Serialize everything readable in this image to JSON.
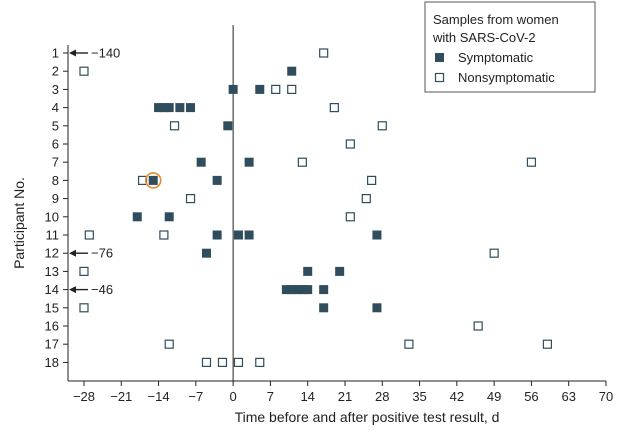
{
  "colors": {
    "symptomatic": "#2f4d5c",
    "nonsymptomatic_stroke": "#2f4d5c",
    "nonsymptomatic_fill": "#ffffff",
    "highlight_ring": "#e8892b",
    "axis": "#222222",
    "zero_line": "#222222",
    "legend_border": "#555555"
  },
  "chart_data": {
    "type": "scatter",
    "xlabel": "Time before and after positive test result, d",
    "ylabel": "Participant No.",
    "xlim": [
      -31,
      70
    ],
    "x_ticks": [
      -28,
      -21,
      -14,
      -7,
      0,
      7,
      14,
      21,
      28,
      35,
      42,
      49,
      56,
      63,
      70
    ],
    "y_categories": [
      "1",
      "2",
      "3",
      "4",
      "5",
      "6",
      "7",
      "8",
      "9",
      "10",
      "11",
      "12",
      "13",
      "14",
      "15",
      "16",
      "17",
      "18"
    ],
    "legend_title_lines": [
      "Samples from women",
      "with SARS-CoV-2"
    ],
    "legend_position": "top-right",
    "series": [
      {
        "name": "Symptomatic",
        "marker": "filled-square",
        "points": [
          {
            "p": 2,
            "x": 11
          },
          {
            "p": 3,
            "x": 0
          },
          {
            "p": 3,
            "x": 5
          },
          {
            "p": 4,
            "x": -14
          },
          {
            "p": 4,
            "x": -13
          },
          {
            "p": 4,
            "x": -12
          },
          {
            "p": 4,
            "x": -10
          },
          {
            "p": 4,
            "x": -8
          },
          {
            "p": 5,
            "x": -1
          },
          {
            "p": 7,
            "x": -6
          },
          {
            "p": 7,
            "x": 3
          },
          {
            "p": 8,
            "x": -15
          },
          {
            "p": 8,
            "x": -3
          },
          {
            "p": 10,
            "x": -18
          },
          {
            "p": 10,
            "x": -12
          },
          {
            "p": 11,
            "x": -3
          },
          {
            "p": 11,
            "x": 1
          },
          {
            "p": 11,
            "x": 3
          },
          {
            "p": 11,
            "x": 27
          },
          {
            "p": 12,
            "x": -5
          },
          {
            "p": 13,
            "x": 14
          },
          {
            "p": 13,
            "x": 20
          },
          {
            "p": 14,
            "x": 10
          },
          {
            "p": 14,
            "x": 11
          },
          {
            "p": 14,
            "x": 12
          },
          {
            "p": 14,
            "x": 13
          },
          {
            "p": 14,
            "x": 14
          },
          {
            "p": 14,
            "x": 17
          },
          {
            "p": 15,
            "x": 17
          },
          {
            "p": 15,
            "x": 27
          }
        ]
      },
      {
        "name": "Nonsymptomatic",
        "marker": "open-square",
        "points": [
          {
            "p": 1,
            "x": 17
          },
          {
            "p": 2,
            "x": -28
          },
          {
            "p": 3,
            "x": 8
          },
          {
            "p": 3,
            "x": 11
          },
          {
            "p": 4,
            "x": 19
          },
          {
            "p": 5,
            "x": -11
          },
          {
            "p": 5,
            "x": 28
          },
          {
            "p": 6,
            "x": 22
          },
          {
            "p": 7,
            "x": 13
          },
          {
            "p": 7,
            "x": 56
          },
          {
            "p": 8,
            "x": -17
          },
          {
            "p": 8,
            "x": 26
          },
          {
            "p": 9,
            "x": -8
          },
          {
            "p": 9,
            "x": 25
          },
          {
            "p": 10,
            "x": 22
          },
          {
            "p": 11,
            "x": -27
          },
          {
            "p": 11,
            "x": -13
          },
          {
            "p": 12,
            "x": 49
          },
          {
            "p": 13,
            "x": -28
          },
          {
            "p": 15,
            "x": -28
          },
          {
            "p": 16,
            "x": 46
          },
          {
            "p": 17,
            "x": -12
          },
          {
            "p": 17,
            "x": 33
          },
          {
            "p": 17,
            "x": 59
          },
          {
            "p": 18,
            "x": -5
          },
          {
            "p": 18,
            "x": -2
          },
          {
            "p": 18,
            "x": 1
          },
          {
            "p": 18,
            "x": 5
          }
        ]
      }
    ],
    "annotations": [
      {
        "p": 1,
        "text": "−140",
        "direction": "left"
      },
      {
        "p": 12,
        "text": "−76",
        "direction": "left"
      },
      {
        "p": 14,
        "text": "−46",
        "direction": "left"
      }
    ],
    "highlighted_point": {
      "p": 8,
      "x": -15
    }
  }
}
